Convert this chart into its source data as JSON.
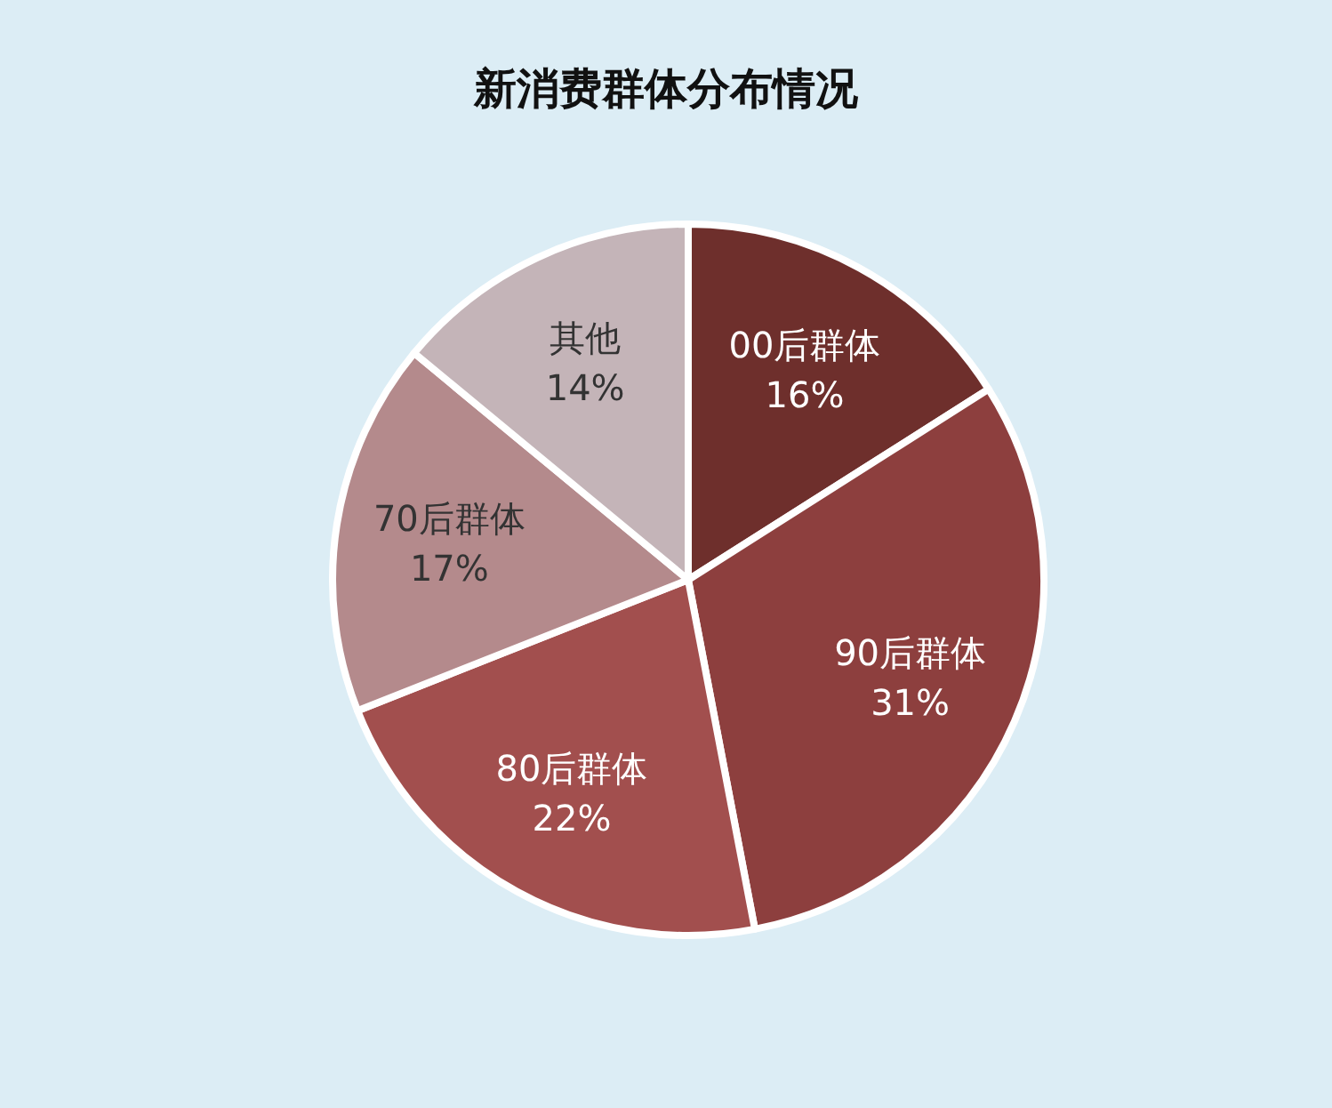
{
  "chart_data": {
    "type": "pie",
    "title": "新消费群体分布情况",
    "categories": [
      "00后群体",
      "90后群体",
      "80后群体",
      "70后群体",
      "其他"
    ],
    "values": [
      16,
      31,
      22,
      17,
      14
    ],
    "colors": [
      "#6e2f2c",
      "#8d3f3e",
      "#a24f4e",
      "#b48a8c",
      "#c4b4b8"
    ],
    "value_labels": [
      "16%",
      "31%",
      "22%",
      "17%",
      "14%"
    ]
  }
}
